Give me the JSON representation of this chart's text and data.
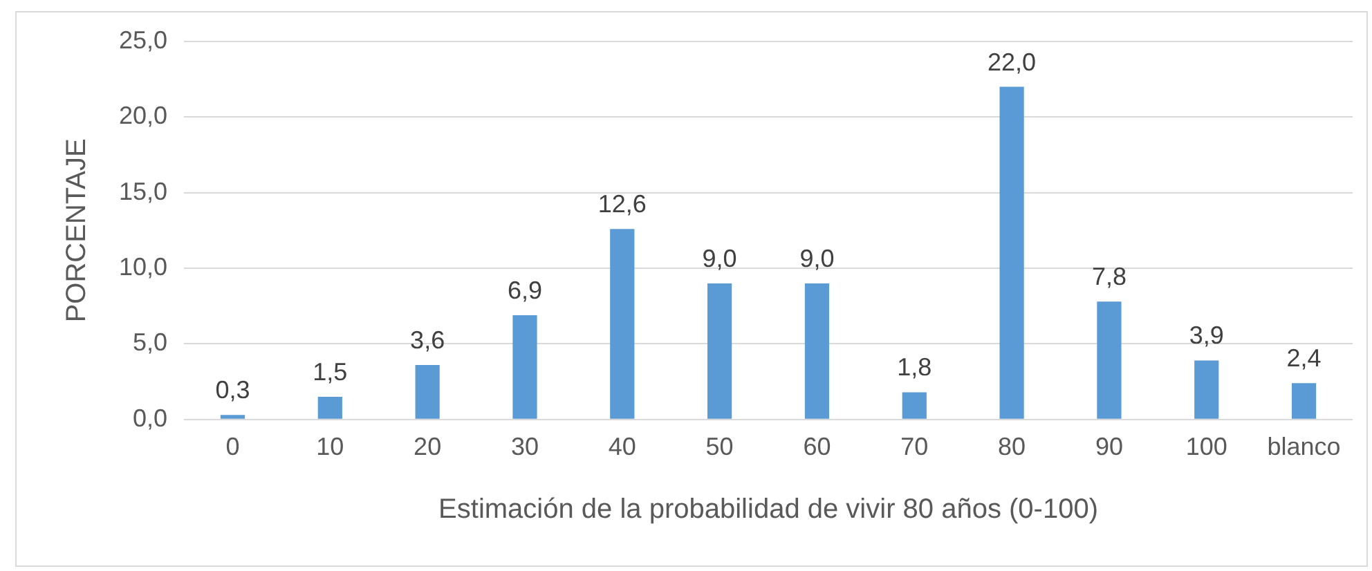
{
  "chart_data": {
    "type": "bar",
    "xlabel": "Estimación de la probabilidad de vivir 80 años (0-100)",
    "ylabel": "PORCENTAJE",
    "categories": [
      "0",
      "10",
      "20",
      "30",
      "40",
      "50",
      "60",
      "70",
      "80",
      "90",
      "100",
      "blanco"
    ],
    "values": [
      0.3,
      1.5,
      3.6,
      6.9,
      12.6,
      9.0,
      9.0,
      1.8,
      22.0,
      7.8,
      3.9,
      2.4
    ],
    "value_labels": [
      "0,3",
      "1,5",
      "3,6",
      "6,9",
      "12,6",
      "9,0",
      "9,0",
      "1,8",
      "22,0",
      "7,8",
      "3,9",
      "2,4"
    ],
    "color": "#5b9bd5",
    "ylim": [
      0,
      25
    ],
    "yticks": [
      {
        "value": 0,
        "label": "0,0"
      },
      {
        "value": 5,
        "label": "5,0"
      },
      {
        "value": 10,
        "label": "10,0"
      },
      {
        "value": 15,
        "label": "15,0"
      },
      {
        "value": 20,
        "label": "20,0"
      },
      {
        "value": 25,
        "label": "25,0"
      }
    ],
    "grid": "y",
    "legend": false
  }
}
